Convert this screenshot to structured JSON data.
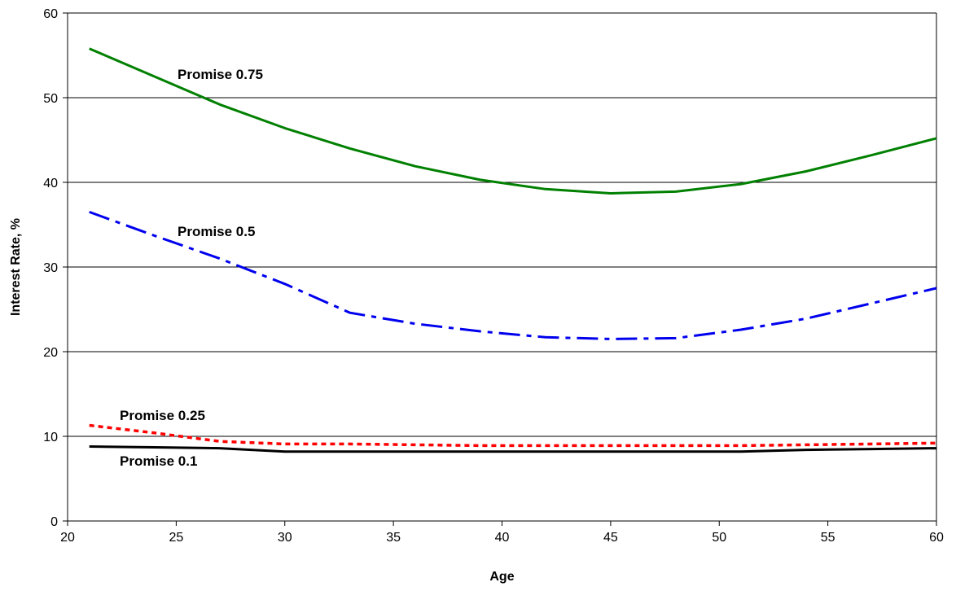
{
  "chart_data": {
    "type": "line",
    "title": "",
    "xlabel": "Age",
    "ylabel": "Interest Rate, %",
    "xlim": [
      20,
      60
    ],
    "ylim": [
      0,
      60
    ],
    "x_ticks": [
      "20",
      "25",
      "30",
      "35",
      "40",
      "45",
      "50",
      "55",
      "60"
    ],
    "y_ticks": [
      "0",
      "10",
      "20",
      "30",
      "40",
      "50",
      "60"
    ],
    "grid": "horizontal",
    "legend": "none",
    "x": [
      21,
      24,
      27,
      30,
      33,
      36,
      39,
      42,
      45,
      48,
      51,
      54,
      57,
      60
    ],
    "series": [
      {
        "name": "Promise 0.75",
        "color": "#008000",
        "style": "solid",
        "values": [
          55.8,
          52.5,
          49.2,
          46.4,
          44.0,
          41.9,
          40.3,
          39.2,
          38.7,
          38.9,
          39.8,
          41.3,
          43.2,
          45.2
        ]
      },
      {
        "name": "Promise 0.5",
        "color": "#0000ee",
        "style": "dashdot",
        "values": [
          36.5,
          33.7,
          31.0,
          28.0,
          24.6,
          23.3,
          22.4,
          21.7,
          21.5,
          21.6,
          22.6,
          23.9,
          25.7,
          27.5
        ]
      },
      {
        "name": "Promise 0.25",
        "color": "#ff0000",
        "style": "dotted",
        "values": [
          11.3,
          10.4,
          9.4,
          9.1,
          9.1,
          9.0,
          8.9,
          8.9,
          8.9,
          8.9,
          8.9,
          9.0,
          9.1,
          9.2
        ]
      },
      {
        "name": "Promise 0.1",
        "color": "#000000",
        "style": "solid",
        "values": [
          8.8,
          8.7,
          8.6,
          8.2,
          8.2,
          8.2,
          8.2,
          8.2,
          8.2,
          8.2,
          8.2,
          8.4,
          8.5,
          8.6
        ]
      }
    ]
  }
}
